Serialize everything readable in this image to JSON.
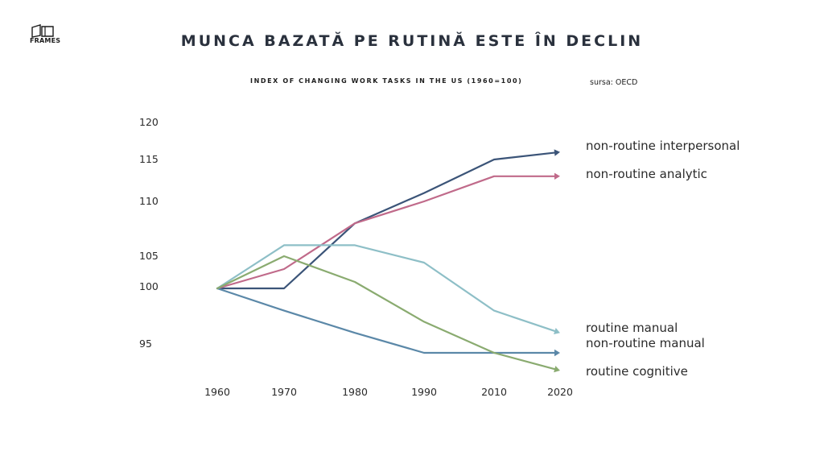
{
  "header": {
    "logo_text": "FRAMES",
    "title": "MUNCA BAZATĂ PE RUTINĂ ESTE ÎN DECLIN",
    "subtitle": "INDEX OF CHANGING WORK TASKS IN THE US (1960=100)",
    "source": "sursa: OECD"
  },
  "chart_data": {
    "type": "line",
    "title": "INDEX OF CHANGING WORK TASKS IN THE US (1960=100)",
    "xlabel": "",
    "ylabel": "",
    "x": [
      1960,
      1970,
      1980,
      1990,
      2010,
      2020
    ],
    "x_tick_labels": [
      "1960",
      "1970",
      "1980",
      "1990",
      "2010",
      "2020"
    ],
    "y_ticks": [
      95,
      100,
      105,
      110,
      115,
      120
    ],
    "y_tick_labels": [
      "95",
      "100",
      "105",
      "110",
      "115",
      "120"
    ],
    "grid": false,
    "legend": "labels at line ends (right)",
    "series": [
      {
        "name": "non-routine interpersonal",
        "color": "#3b5478",
        "values": [
          100,
          100,
          108,
          111,
          115,
          116
        ]
      },
      {
        "name": "non-routine analytic",
        "color": "#c06a8a",
        "values": [
          100,
          103,
          108,
          110,
          113,
          113
        ]
      },
      {
        "name": "routine manual",
        "color": "#8ebfc7",
        "values": [
          100,
          106,
          106,
          104,
          98,
          96
        ]
      },
      {
        "name": "non-routine manual",
        "color": "#5b88a8",
        "values": [
          100,
          98,
          96,
          94,
          94,
          94
        ]
      },
      {
        "name": "routine cognitive",
        "color": "#8aab70",
        "values": [
          100,
          105,
          101,
          97,
          94,
          92
        ]
      }
    ]
  }
}
